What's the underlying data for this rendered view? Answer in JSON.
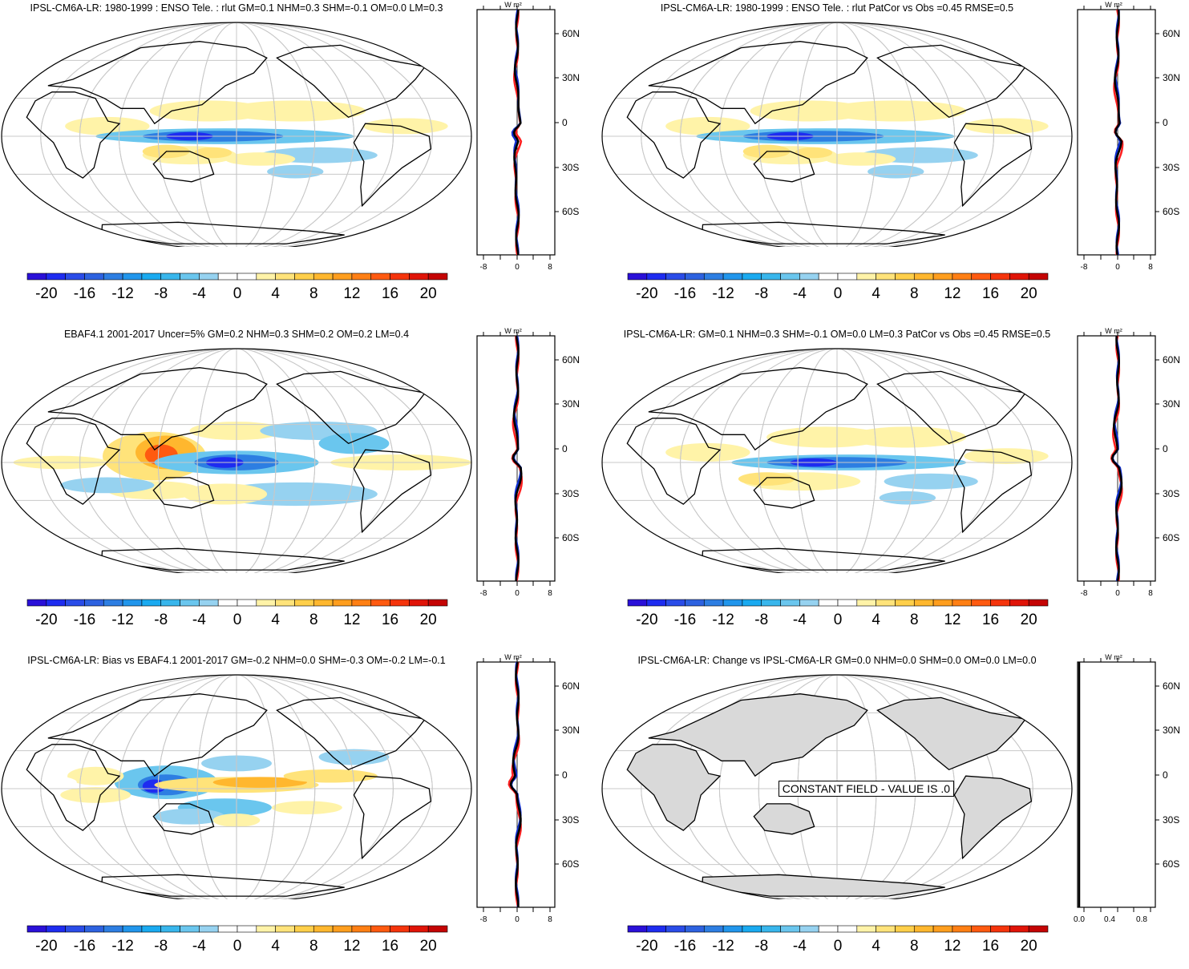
{
  "figure": {
    "model": "IPSL-CM6A-LR",
    "variable": "rlut",
    "units": "W m²",
    "colors": {
      "land_gray": "#d9d9d9",
      "grid": "#c8c8c8",
      "zonal_obs": "#ff2020",
      "zonal_model": "#1030d0",
      "zonal_diff": "#000000"
    }
  },
  "colorbar": {
    "tick_labels": [
      "-20",
      "-16",
      "-12",
      "-8",
      "-4",
      "0",
      "4",
      "8",
      "12",
      "16",
      "20"
    ],
    "levels": [
      -22,
      -20,
      -18,
      -16,
      -14,
      -12,
      -10,
      -8,
      -6,
      -4,
      -2,
      2,
      4,
      6,
      8,
      10,
      12,
      14,
      16,
      18,
      20,
      22
    ],
    "colors": [
      "#2a10d8",
      "#1e2cf0",
      "#2a4ce8",
      "#2d62e0",
      "#2d7ee2",
      "#2196ec",
      "#1aaaf0",
      "#38b6ec",
      "#6ac6ee",
      "#96d2f0",
      "#ffffff",
      "#ffffff",
      "#fff3a8",
      "#ffe37a",
      "#ffcf4a",
      "#ffb72e",
      "#ff9e1e",
      "#ff7f14",
      "#ff5a10",
      "#f5340c",
      "#e01408",
      "#c40404"
    ]
  },
  "latitude_labels": [
    "60N",
    "30N",
    "0",
    "30S",
    "60S"
  ],
  "panels": [
    {
      "id": "model-enso",
      "title": "IPSL-CM6A-LR: 1980-1999 : ENSO Tele. : rlut GM=0.1 NHM=0.3 SHM=-0.1 OM=0.0 LM=0.3",
      "profile_units": "W m²",
      "profile_ticks": [
        "-8",
        "0",
        "8"
      ],
      "colorbar_labels": [
        "-20",
        "-16",
        "-12",
        "-8",
        "-4",
        "0",
        "4",
        "8",
        "12",
        "16",
        "20"
      ]
    },
    {
      "id": "model-enso-patcor",
      "title": "IPSL-CM6A-LR: 1980-1999 : ENSO Tele. : rlut PatCor vs Obs =0.45 RMSE=0.5",
      "profile_units": "W m²",
      "profile_ticks": [
        "-8",
        "0",
        "8"
      ],
      "colorbar_labels": [
        "-20",
        "-16",
        "-12",
        "-8",
        "-4",
        "0",
        "4",
        "8",
        "12",
        "16",
        "20"
      ]
    },
    {
      "id": "obs-ebaf",
      "title": "EBAF4.1 2001-2017 Uncer=5% GM=0.2 NHM=0.3 SHM=0.2 OM=0.2 LM=0.4",
      "profile_units": "W m²",
      "profile_ticks": [
        "-8",
        "0",
        "8"
      ],
      "colorbar_labels": [
        "-20",
        "-16",
        "-12",
        "-8",
        "-4",
        "0",
        "4",
        "8",
        "12",
        "16",
        "20"
      ]
    },
    {
      "id": "model-vs-obs",
      "title": "IPSL-CM6A-LR: GM=0.1 NHM=0.3 SHM=-0.1 OM=0.0 LM=0.3 PatCor vs Obs =0.45 RMSE=0.5",
      "profile_units": "W m²",
      "profile_ticks": [
        "-8",
        "0",
        "8"
      ],
      "colorbar_labels": [
        "-20",
        "-16",
        "-12",
        "-8",
        "-4",
        "0",
        "4",
        "8",
        "12",
        "16",
        "20"
      ]
    },
    {
      "id": "bias",
      "title": "IPSL-CM6A-LR: Bias vs EBAF4.1 2001-2017 GM=-0.2 NHM=0.0 SHM=-0.3 OM=-0.2 LM=-0.1",
      "profile_units": "W m²",
      "profile_ticks": [
        "-8",
        "0",
        "8"
      ],
      "colorbar_labels": [
        "-20",
        "-16",
        "-12",
        "-8",
        "-4",
        "0",
        "4",
        "8",
        "12",
        "16",
        "20"
      ]
    },
    {
      "id": "change",
      "title": "IPSL-CM6A-LR: Change vs IPSL-CM6A-LR GM=0.0 NHM=0.0 SHM=0.0 OM=0.0 LM=0.0",
      "profile_units": "W m²",
      "profile_ticks": [
        "0.0",
        "0.4",
        "0.8"
      ],
      "colorbar_labels": [
        "-20",
        "-16",
        "-12",
        "-8",
        "-4",
        "0",
        "4",
        "8",
        "12",
        "16",
        "20"
      ],
      "constant_label": "CONSTANT FIELD - VALUE IS .0"
    }
  ]
}
